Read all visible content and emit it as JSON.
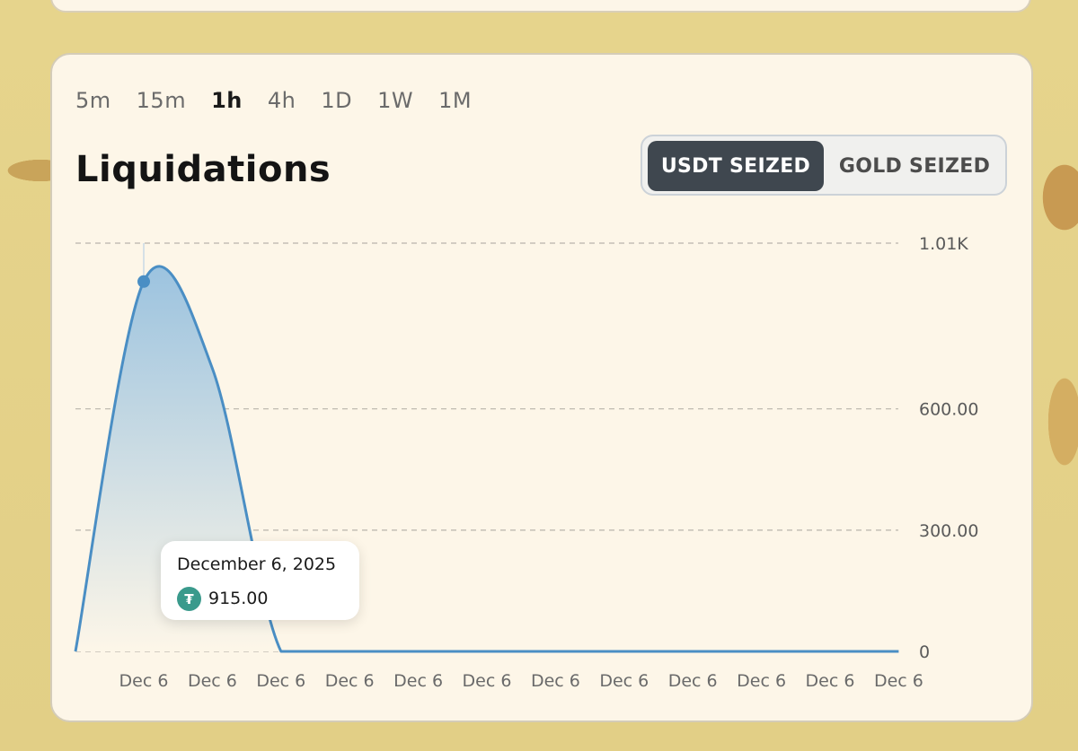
{
  "timeframes": [
    "5m",
    "15m",
    "1h",
    "4h",
    "1D",
    "1W",
    "1M"
  ],
  "active_timeframe": "1h",
  "title": "Liquidations",
  "toggle": {
    "usdt_label": "USDT SEIZED",
    "gold_label": "GOLD SEIZED",
    "selected": "USDT SEIZED"
  },
  "tooltip": {
    "date": "December 6, 2025",
    "value": "915.00",
    "icon": "tether-icon"
  },
  "colors": {
    "line": "#4a8ec4",
    "fill_top": "#9cc3df",
    "fill_bottom": "#fdf6e8",
    "toggle_active": "#3f474f"
  },
  "chart_data": {
    "type": "area",
    "x": [
      "Dec 6",
      "Dec 6",
      "Dec 6",
      "Dec 6",
      "Dec 6",
      "Dec 6",
      "Dec 6",
      "Dec 6",
      "Dec 6",
      "Dec 6",
      "Dec 6",
      "Dec 6"
    ],
    "y": [
      915,
      700,
      0,
      0,
      0,
      0,
      0,
      0,
      0,
      0,
      0,
      0
    ],
    "yticks": [
      "1.01K",
      "600.00",
      "300.00",
      "0"
    ],
    "ytick_values": [
      1010,
      600,
      300,
      0
    ],
    "ylim": [
      0,
      1010
    ],
    "grid": true,
    "highlight_index": 0
  }
}
